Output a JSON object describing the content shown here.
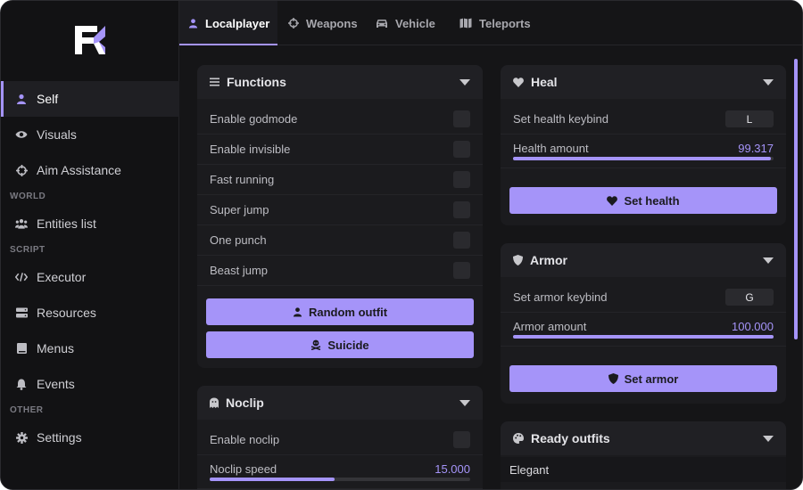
{
  "sidebar": {
    "items": [
      {
        "label": "Self",
        "icon": "user-icon"
      },
      {
        "label": "Visuals",
        "icon": "eye-icon"
      },
      {
        "label": "Aim Assistance",
        "icon": "crosshair-icon"
      },
      {
        "label": "Entities list",
        "icon": "users-icon"
      },
      {
        "label": "Executor",
        "icon": "code-icon"
      },
      {
        "label": "Resources",
        "icon": "server-icon"
      },
      {
        "label": "Menus",
        "icon": "book-icon"
      },
      {
        "label": "Events",
        "icon": "bell-icon"
      },
      {
        "label": "Settings",
        "icon": "gear-icon"
      }
    ],
    "sections": [
      "WORLD",
      "SCRIPT",
      "OTHER"
    ]
  },
  "tabs": [
    "Localplayer",
    "Weapons",
    "Vehicle",
    "Teleports"
  ],
  "functions": {
    "title": "Functions",
    "rows": [
      "Enable godmode",
      "Enable invisible",
      "Fast running",
      "Super jump",
      "One punch",
      "Beast jump"
    ],
    "buttons": [
      "Random outfit",
      "Suicide"
    ]
  },
  "noclip": {
    "title": "Noclip",
    "toggle_label": "Enable noclip",
    "speed_label": "Noclip speed",
    "speed_value": "15.000",
    "speed_fraction": 0.48
  },
  "heal": {
    "title": "Heal",
    "keybind_label": "Set health keybind",
    "keybind_value": "L",
    "amount_label": "Health amount",
    "amount_value": "99.317",
    "amount_fraction": 0.99,
    "button": "Set health"
  },
  "armor": {
    "title": "Armor",
    "keybind_label": "Set armor keybind",
    "keybind_value": "G",
    "amount_label": "Armor amount",
    "amount_value": "100.000",
    "amount_fraction": 1.0,
    "button": "Set armor"
  },
  "outfits": {
    "title": "Ready outfits",
    "items": [
      "Elegant"
    ]
  },
  "colors": {
    "accent": "#a594f9",
    "background": "#151517",
    "panel": "#1b1b1e"
  }
}
